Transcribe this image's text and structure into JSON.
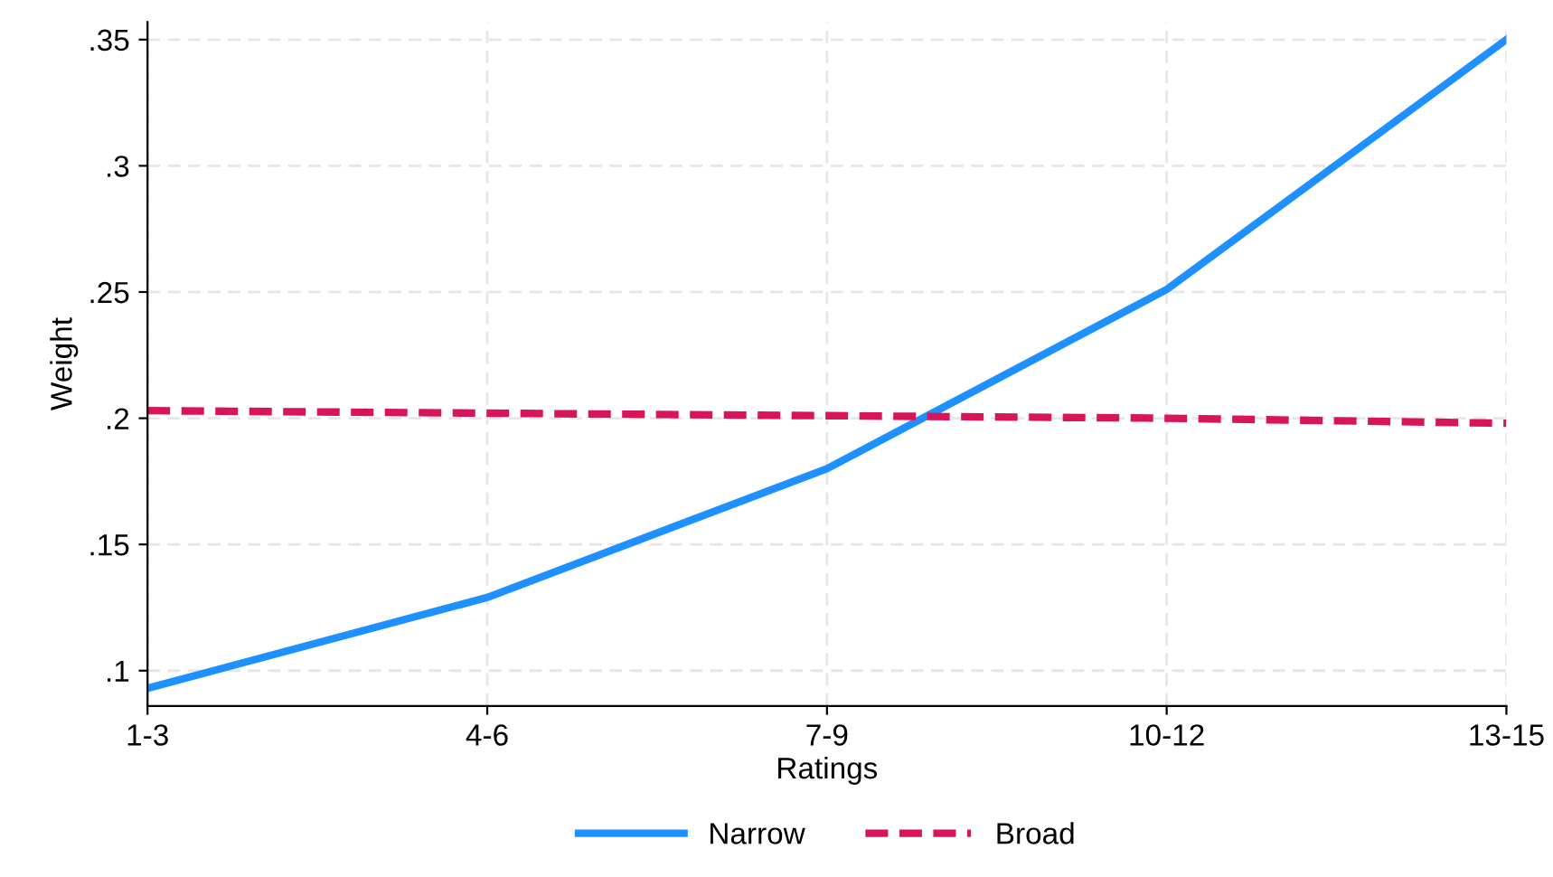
{
  "chart_data": {
    "type": "line",
    "xlabel": "Ratings",
    "ylabel": "Weight",
    "categories": [
      "1-3",
      "4-6",
      "7-9",
      "10-12",
      "13-15"
    ],
    "series": [
      {
        "name": "Narrow",
        "color": "#1e90ff",
        "line_style": "solid",
        "values": [
          0.093,
          0.129,
          0.18,
          0.251,
          0.35
        ]
      },
      {
        "name": "Broad",
        "color": "#d8145a",
        "line_style": "dashed",
        "values": [
          0.203,
          0.202,
          0.201,
          0.2,
          0.198
        ]
      }
    ],
    "ylim": [
      0.086,
      0.357
    ],
    "yticks": [
      {
        "value": 0.1,
        "label": ".1"
      },
      {
        "value": 0.15,
        "label": ".15"
      },
      {
        "value": 0.2,
        "label": ".2"
      },
      {
        "value": 0.25,
        "label": ".25"
      },
      {
        "value": 0.3,
        "label": ".3"
      },
      {
        "value": 0.35,
        "label": ".35"
      }
    ],
    "grid": true,
    "legend": "bottom",
    "marker": "none"
  }
}
